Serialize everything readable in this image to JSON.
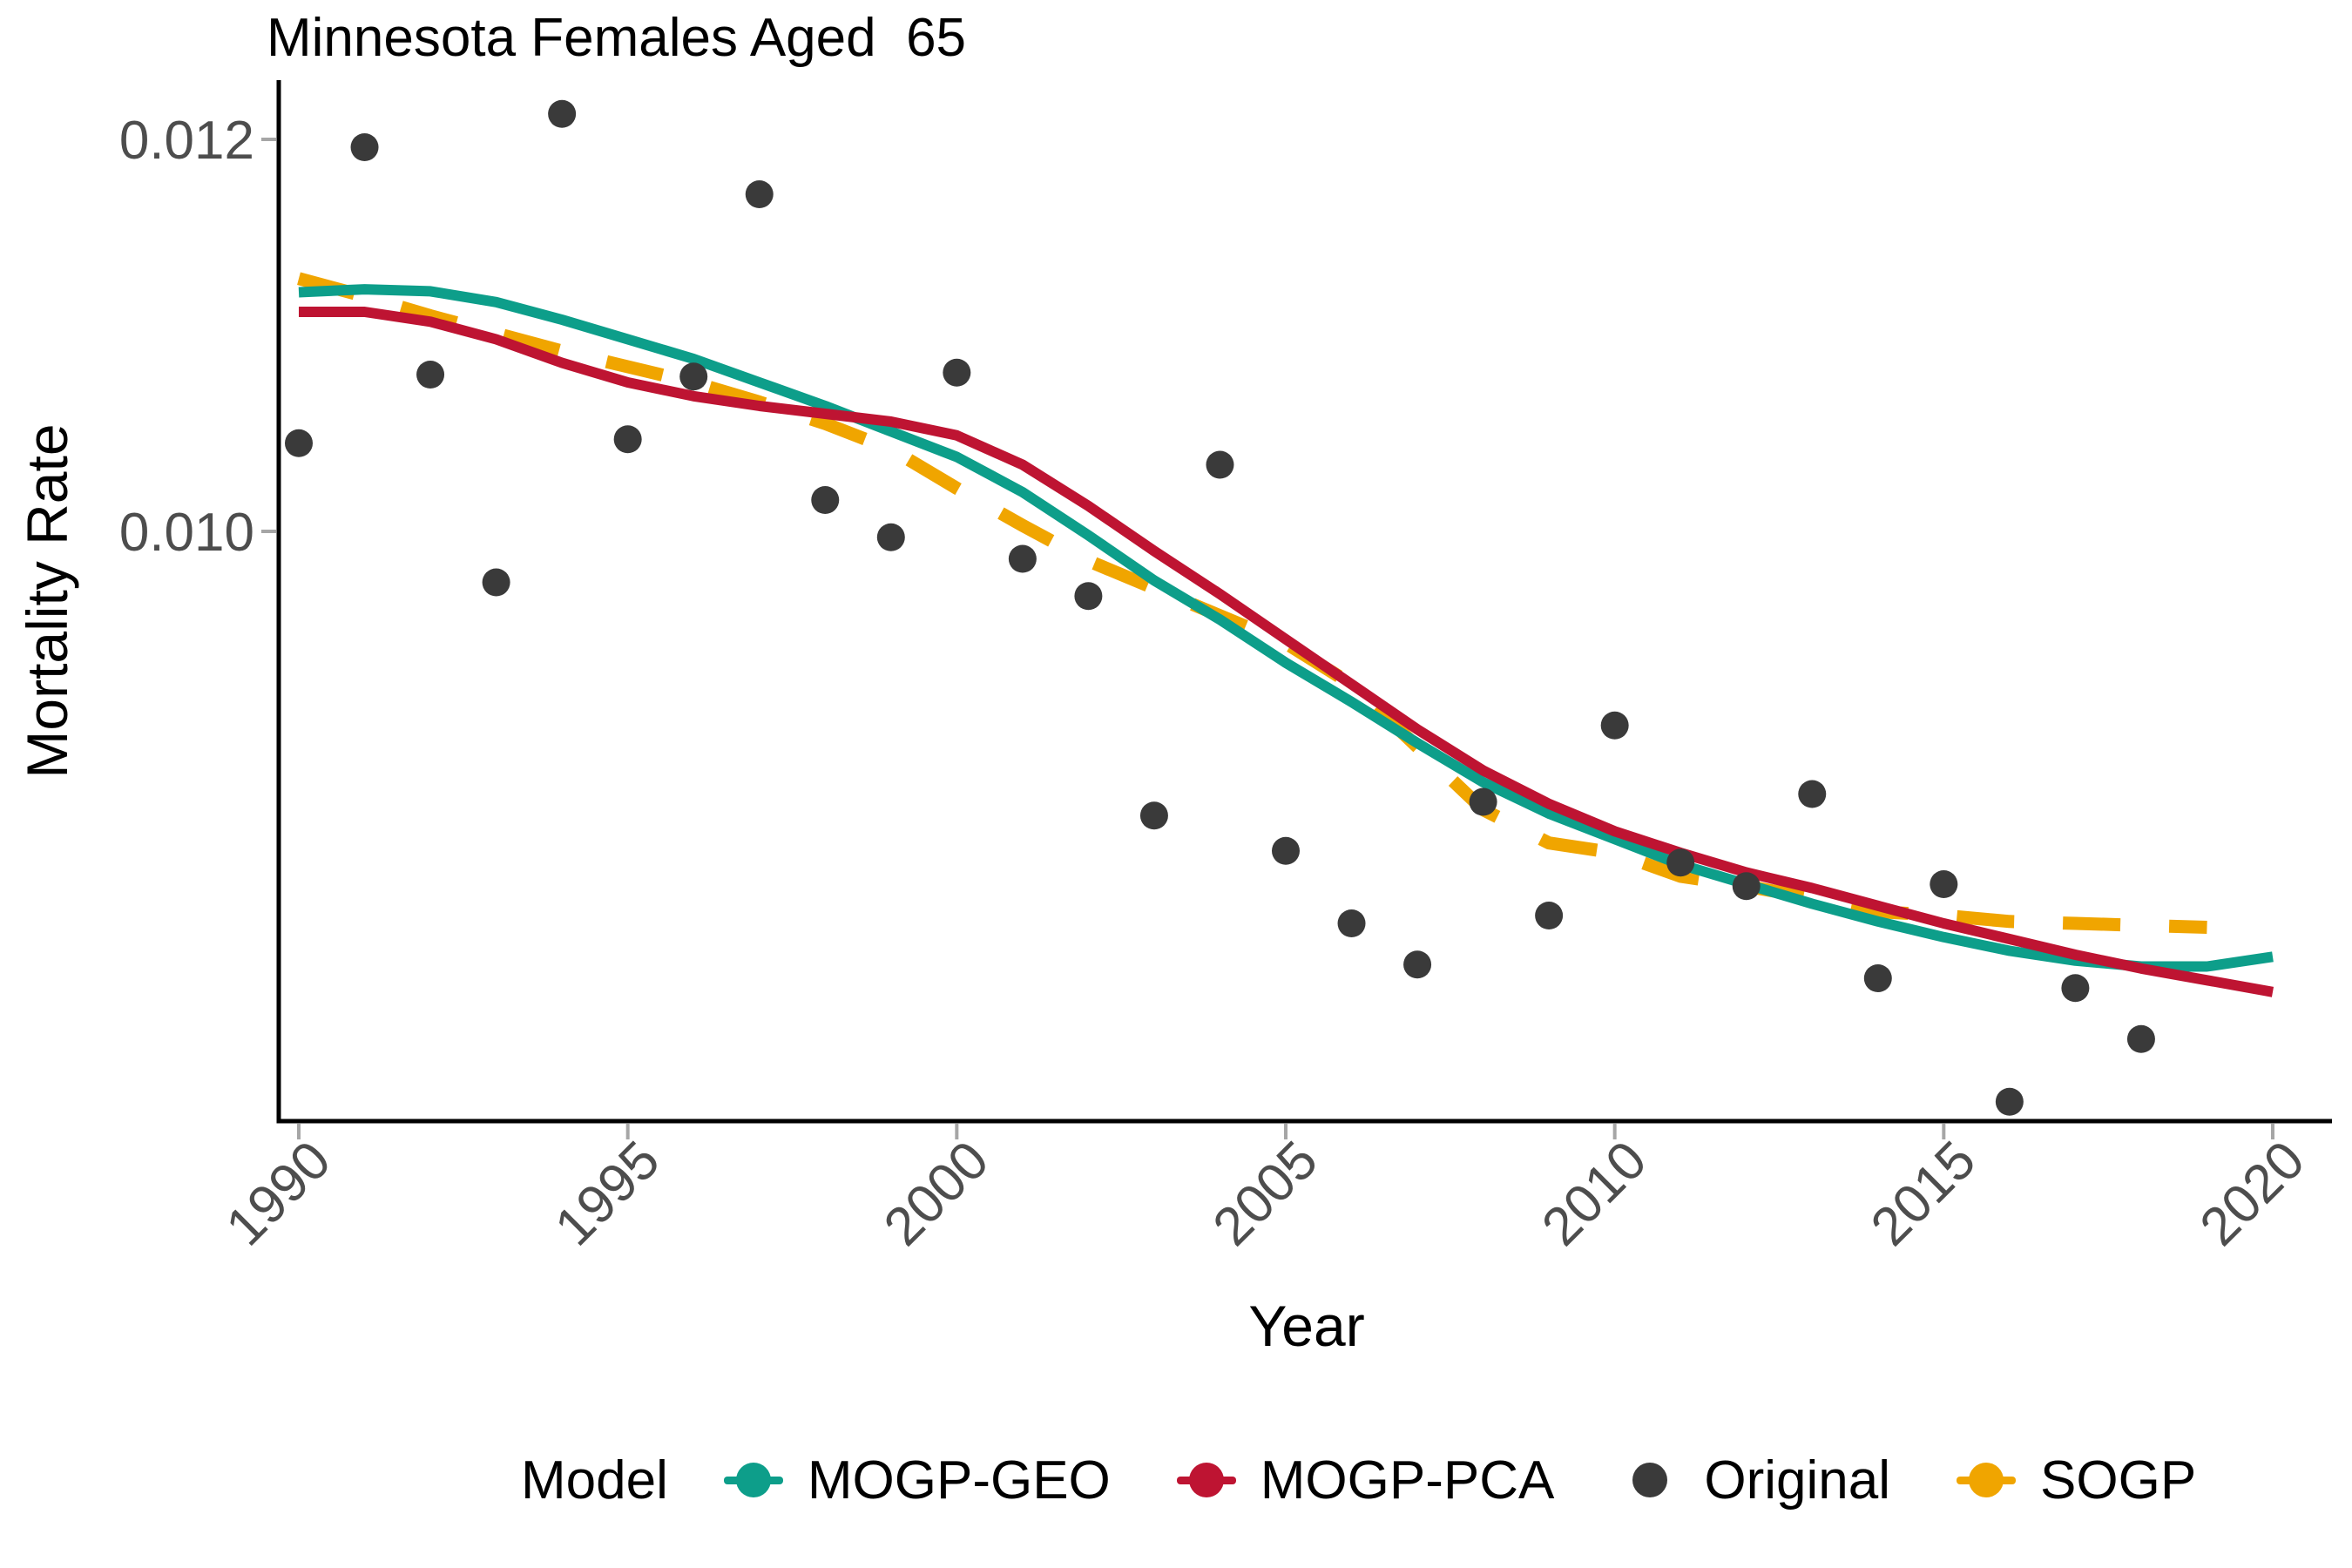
{
  "title": "Minnesota Females Aged  65",
  "axes": {
    "x_label": "Year",
    "y_label": "Mortality Rate",
    "x_tick_labels": [
      "1990",
      "1995",
      "2000",
      "2005",
      "2010",
      "2015",
      "2020"
    ],
    "y_tick_labels": [
      "0.012",
      "0.010"
    ],
    "tick_color": "#A6A6A6",
    "tick_text_color": "#4D4D4D",
    "axis_line_color": "#000000"
  },
  "legend": {
    "title": "Model",
    "items": [
      {
        "label": "MOGP-GEO",
        "color": "#0D9E8A",
        "key": "line-point"
      },
      {
        "label": "MOGP-PCA",
        "color": "#BE1432",
        "key": "line-point"
      },
      {
        "label": "Original",
        "color": "#3A3A3A",
        "key": "point"
      },
      {
        "label": "SOGP",
        "color": "#F0A500",
        "key": "line-point"
      }
    ]
  },
  "chart_data": {
    "type": "line",
    "title": "Minnesota Females Aged  65",
    "xlabel": "Year",
    "ylabel": "Mortality Rate",
    "xlim": [
      1989.7,
      2020.9
    ],
    "ylim": [
      0.007,
      0.0123
    ],
    "x_ticks": [
      1990,
      1995,
      2000,
      2005,
      2010,
      2015,
      2020
    ],
    "y_ticks": [
      0.012,
      0.01
    ],
    "grid": false,
    "legend_position": "bottom",
    "series": [
      {
        "name": "SOGP",
        "type": "dashed-line",
        "color": "#F0A500",
        "x": [
          1990,
          1991,
          1992,
          1993,
          1994,
          1995,
          1996,
          1997,
          1998,
          1999,
          2000,
          2001,
          2002,
          2003,
          2004,
          2005,
          2006,
          2007,
          2008,
          2009,
          2010,
          2011,
          2012,
          2013,
          2014,
          2015,
          2016,
          2017,
          2018,
          2019
        ],
        "values": [
          0.01129,
          0.0112,
          0.0111,
          0.01101,
          0.01092,
          0.01084,
          0.01076,
          0.01066,
          0.01055,
          0.01042,
          0.01022,
          0.01003,
          0.00985,
          0.00971,
          0.00957,
          0.00943,
          0.00922,
          0.0089,
          0.00858,
          0.00841,
          0.00836,
          0.00824,
          0.00819,
          0.00813,
          0.00806,
          0.00804,
          0.00801,
          0.008,
          0.00799,
          0.00798
        ]
      },
      {
        "name": "MOGP-GEO",
        "type": "line",
        "color": "#0D9E8A",
        "x": [
          1990,
          1991,
          1992,
          1993,
          1994,
          1995,
          1996,
          1997,
          1998,
          1999,
          2000,
          2001,
          2002,
          2003,
          2004,
          2005,
          2006,
          2007,
          2008,
          2009,
          2010,
          2011,
          2012,
          2013,
          2014,
          2015,
          2016,
          2017,
          2018,
          2019,
          2020
        ],
        "values": [
          0.01122,
          0.011235,
          0.011225,
          0.01117,
          0.01108,
          0.01098,
          0.01088,
          0.01076,
          0.01064,
          0.01051,
          0.01038,
          0.0102,
          0.00998,
          0.00975,
          0.00955,
          0.00933,
          0.00913,
          0.00892,
          0.00872,
          0.00856,
          0.00843,
          0.0083,
          0.0082,
          0.0081,
          0.00801,
          0.00793,
          0.00786,
          0.00781,
          0.00778,
          0.00778,
          0.00783
        ]
      },
      {
        "name": "MOGP-PCA",
        "type": "line",
        "color": "#BE1432",
        "x": [
          1990,
          1991,
          1992,
          1993,
          1994,
          1995,
          1996,
          1997,
          1998,
          1999,
          2000,
          2001,
          2002,
          2003,
          2004,
          2005,
          2006,
          2007,
          2008,
          2009,
          2010,
          2011,
          2012,
          2013,
          2014,
          2015,
          2016,
          2017,
          2018,
          2019,
          2020
        ],
        "values": [
          0.01112,
          0.01112,
          0.01107,
          0.01098,
          0.01086,
          0.01076,
          0.01069,
          0.01064,
          0.0106,
          0.01056,
          0.01049,
          0.01034,
          0.01013,
          0.0099,
          0.00968,
          0.00945,
          0.00922,
          0.00899,
          0.00878,
          0.00861,
          0.00847,
          0.00836,
          0.00826,
          0.00818,
          0.00809,
          0.008,
          0.00792,
          0.00784,
          0.00777,
          0.00771,
          0.00765
        ]
      },
      {
        "name": "Original",
        "type": "scatter",
        "color": "#3A3A3A",
        "x": [
          1990,
          1991,
          1992,
          1993,
          1994,
          1995,
          1996,
          1997,
          1998,
          1999,
          2000,
          2001,
          2002,
          2003,
          2004,
          2005,
          2006,
          2007,
          2008,
          2009,
          2010,
          2011,
          2012,
          2013,
          2014,
          2015,
          2016,
          2017,
          2018
        ],
        "values": [
          0.01045,
          0.01196,
          0.0108,
          0.00974,
          0.01213,
          0.01047,
          0.01079,
          0.01172,
          0.01016,
          0.00997,
          0.01081,
          0.00986,
          0.00967,
          0.00855,
          0.01034,
          0.00837,
          0.008,
          0.00779,
          0.00862,
          0.00804,
          0.00901,
          0.00831,
          0.00819,
          0.00866,
          0.00772,
          0.0082,
          0.00709,
          0.00767,
          0.00741
        ]
      }
    ]
  }
}
